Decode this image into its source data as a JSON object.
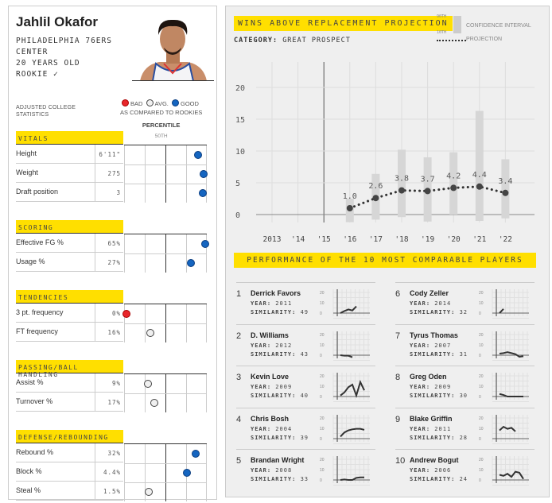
{
  "player": {
    "name": "Jahlil Okafor",
    "team": "PHILADELPHIA 76ERS",
    "position": "CENTER",
    "age": "20 YEARS OLD",
    "status": "ROOKIE ✓"
  },
  "stats_intro": "ADJUSTED COLLEGE STATISTICS",
  "legend": {
    "bad": "BAD",
    "avg": "AVG.",
    "good": "GOOD",
    "compared": "AS COMPARED TO ROOKIES",
    "percentile": "PERCENTILE",
    "fiftieth": "50TH",
    "colors": {
      "bad": "#e8262b",
      "avg": "#f0f0f0",
      "good": "#1565c0"
    }
  },
  "sections": [
    {
      "title": "VITALS",
      "rows": [
        {
          "label": "Height",
          "value": "6'11\"",
          "percentile": 0.89,
          "rating": "good"
        },
        {
          "label": "Weight",
          "value": "275",
          "percentile": 0.96,
          "rating": "good"
        },
        {
          "label": "Draft position",
          "value": "3",
          "percentile": 0.95,
          "rating": "good"
        }
      ]
    },
    {
      "title": "SCORING",
      "rows": [
        {
          "label": "Effective FG %",
          "value": "65%",
          "percentile": 0.98,
          "rating": "good"
        },
        {
          "label": "Usage %",
          "value": "27%",
          "percentile": 0.81,
          "rating": "good"
        }
      ]
    },
    {
      "title": "TENDENCIES",
      "rows": [
        {
          "label": "3 pt. frequency",
          "value": "0%",
          "percentile": 0.03,
          "rating": "bad"
        },
        {
          "label": "FT frequency",
          "value": "16%",
          "percentile": 0.32,
          "rating": "avg"
        }
      ]
    },
    {
      "title": "PASSING/BALL HANDLING",
      "rows": [
        {
          "label": "Assist %",
          "value": "9%",
          "percentile": 0.29,
          "rating": "avg"
        },
        {
          "label": "Turnover %",
          "value": "17%",
          "percentile": 0.37,
          "rating": "avg"
        }
      ]
    },
    {
      "title": "DEFENSE/REBOUNDING",
      "rows": [
        {
          "label": "Rebound %",
          "value": "32%",
          "percentile": 0.87,
          "rating": "good"
        },
        {
          "label": "Block %",
          "value": "4.4%",
          "percentile": 0.76,
          "rating": "good"
        },
        {
          "label": "Steal %",
          "value": "1.5%",
          "percentile": 0.3,
          "rating": "avg"
        }
      ]
    }
  ],
  "war": {
    "title": "WINS ABOVE REPLACEMENT PROJECTION",
    "category_label": "CATEGORY:",
    "category": "GREAT PROSPECT",
    "legend_90": "90TH",
    "legend_10": "10TH",
    "legend_ci": "CONFIDENCE INTERVAL",
    "legend_proj": "PROJECTION"
  },
  "chart_data": {
    "type": "line",
    "x": [
      "2013",
      "'14",
      "'15",
      "'16",
      "'17",
      "'18",
      "'19",
      "'20",
      "'21",
      "'22"
    ],
    "yticks": [
      0,
      5,
      10,
      15,
      20
    ],
    "ylim": [
      -2,
      23
    ],
    "grid": true,
    "projection": [
      null,
      null,
      null,
      1.0,
      2.6,
      3.8,
      3.7,
      4.2,
      4.4,
      3.4
    ],
    "labels": [
      "",
      "",
      "",
      "1.0",
      "2.6",
      "3.8",
      "3.7",
      "4.2",
      "4.4",
      "3.4"
    ],
    "ci_10": [
      null,
      null,
      null,
      -1.2,
      -0.8,
      -0.4,
      -1.1,
      0.0,
      -1.0,
      -0.6
    ],
    "ci_90": [
      null,
      null,
      null,
      2.5,
      6.4,
      10.2,
      9.0,
      9.8,
      16.3,
      8.7
    ]
  },
  "comparables": {
    "title": "PERFORMANCE OF THE 10 MOST COMPARABLE PLAYERS",
    "year_label": "YEAR:",
    "similarity_label": "SIMILARITY:",
    "axis": [
      "0",
      "10",
      "20"
    ],
    "players": [
      {
        "rank": "1",
        "name": "Derrick Favors",
        "year": "2011",
        "similarity": "49",
        "war": [
          0,
          2,
          3.5,
          2.5,
          6.5
        ]
      },
      {
        "rank": "2",
        "name": "D. Williams",
        "year": "2012",
        "similarity": "43",
        "war": [
          0,
          -0.5,
          -0.5,
          -2
        ]
      },
      {
        "rank": "3",
        "name": "Kevin Love",
        "year": "2009",
        "similarity": "40",
        "war": [
          1,
          4,
          9,
          11.5,
          1,
          14,
          6
        ]
      },
      {
        "rank": "4",
        "name": "Chris Bosh",
        "year": "2004",
        "similarity": "39",
        "war": [
          2,
          6,
          8,
          9,
          9.5,
          9.5,
          8.5
        ]
      },
      {
        "rank": "5",
        "name": "Brandan Wright",
        "year": "2008",
        "similarity": "33",
        "war": [
          0,
          0.5,
          0,
          0,
          2,
          2.5,
          2.5
        ]
      },
      {
        "rank": "6",
        "name": "Cody Zeller",
        "year": "2014",
        "similarity": "32",
        "war": [
          0,
          4
        ]
      },
      {
        "rank": "7",
        "name": "Tyrus Thomas",
        "year": "2007",
        "similarity": "31",
        "war": [
          1.5,
          2,
          3,
          2,
          1,
          -1.5,
          -1
        ]
      },
      {
        "rank": "8",
        "name": "Greg Oden",
        "year": "2009",
        "similarity": "30",
        "war": [
          2.5,
          1.5,
          0,
          0,
          0,
          0,
          0
        ]
      },
      {
        "rank": "9",
        "name": "Blake Griffin",
        "year": "2011",
        "similarity": "28",
        "war": [
          8,
          11.5,
          9.5,
          10.5,
          7
        ]
      },
      {
        "rank": "10",
        "name": "Andrew Bogut",
        "year": "2006",
        "similarity": "24",
        "war": [
          5,
          4,
          6,
          3,
          8,
          7,
          1
        ]
      }
    ]
  }
}
